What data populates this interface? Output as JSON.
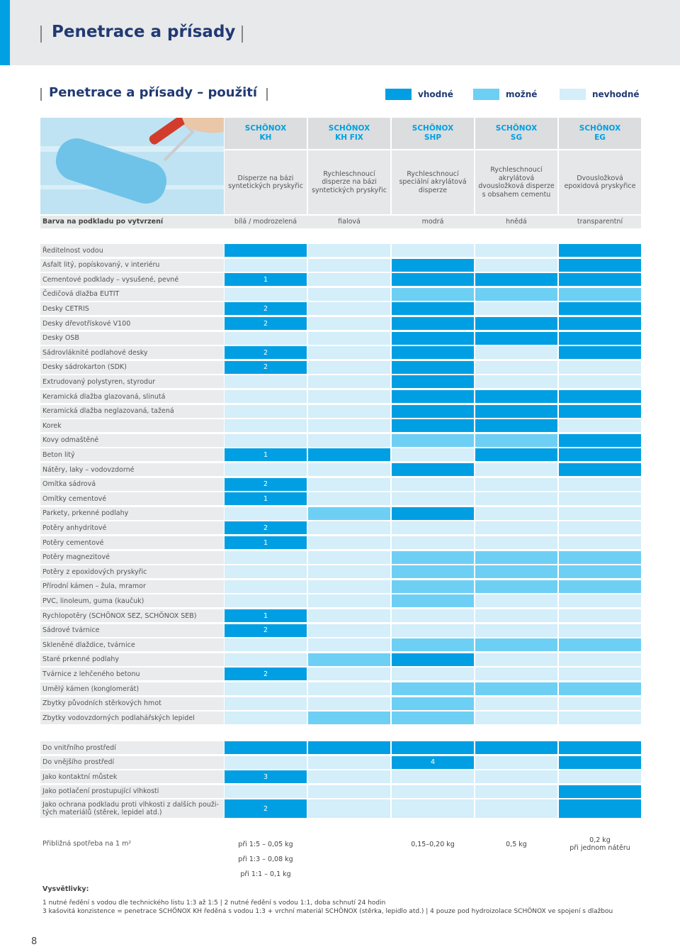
{
  "header": {
    "title": "Penetrace a přísady"
  },
  "section": {
    "title": "Penetrace a přísady – použití"
  },
  "legend": [
    {
      "label": "vhodné",
      "color": "#009fe3"
    },
    {
      "label": "možné",
      "color": "#6ecff5"
    },
    {
      "label": "nevhodné",
      "color": "#d4eefa"
    }
  ],
  "products": [
    {
      "brand": "SCHÖNOX",
      "name": "KH",
      "description": [
        "Disperze na bázi",
        "syntetických pryskyřic"
      ]
    },
    {
      "brand": "SCHÖNOX",
      "name": "KH FIX",
      "description": [
        "Rychleschnoucí",
        "disperze na bázi",
        "syntetických pryskyřic"
      ]
    },
    {
      "brand": "SCHÖNOX",
      "name": "SHP",
      "description": [
        "Rychleschnoucí",
        "speciální akrylátová",
        "disperze"
      ]
    },
    {
      "brand": "SCHÖNOX",
      "name": "SG",
      "description": [
        "Rychleschnoucí",
        "akrylátová",
        "dvousložková disperze",
        "s obsahem cementu"
      ]
    },
    {
      "brand": "SCHÖNOX",
      "name": "EG",
      "description": [
        "Dvousložková",
        "epoxidová pryskyřice"
      ]
    }
  ],
  "base_color": {
    "label": "Barva na podkladu po vytvrzení",
    "values": [
      "bílá / modrozelená",
      "fialová",
      "modrá",
      "hnědá",
      "transparentní"
    ]
  },
  "rows": [
    {
      "label": "Ředitelnost vodou",
      "levels": [
        0,
        2,
        2,
        2,
        0
      ],
      "notes": [
        null,
        null,
        null,
        null,
        null
      ]
    },
    {
      "label": "Asfalt litý, popískovaný, v interiéru",
      "levels": [
        2,
        2,
        0,
        2,
        0
      ],
      "notes": [
        null,
        null,
        null,
        null,
        null
      ]
    },
    {
      "label": "Cementové podklady – vysušené, pevné",
      "levels": [
        0,
        2,
        0,
        0,
        0
      ],
      "notes": [
        "1",
        null,
        null,
        null,
        null
      ]
    },
    {
      "label": "Čedičová dlažba EUTIT",
      "levels": [
        2,
        2,
        1,
        1,
        1
      ],
      "notes": [
        null,
        null,
        null,
        null,
        null
      ]
    },
    {
      "label": "Desky CETRIS",
      "levels": [
        0,
        2,
        0,
        2,
        0
      ],
      "notes": [
        "2",
        null,
        null,
        null,
        null
      ]
    },
    {
      "label": "Desky dřevotřískové V100",
      "levels": [
        0,
        2,
        0,
        0,
        0
      ],
      "notes": [
        "2",
        null,
        null,
        null,
        null
      ]
    },
    {
      "label": "Desky OSB",
      "levels": [
        2,
        2,
        0,
        0,
        0
      ],
      "notes": [
        null,
        null,
        null,
        null,
        null
      ]
    },
    {
      "label": "Sádrovláknité podlahové desky",
      "levels": [
        0,
        2,
        0,
        2,
        0
      ],
      "notes": [
        "2",
        null,
        null,
        null,
        null
      ]
    },
    {
      "label": "Desky sádrokarton (SDK)",
      "levels": [
        0,
        2,
        0,
        2,
        2
      ],
      "notes": [
        "2",
        null,
        null,
        null,
        null
      ]
    },
    {
      "label": "Extrudovaný polystyren, styrodur",
      "levels": [
        2,
        2,
        0,
        2,
        2
      ],
      "notes": [
        null,
        null,
        null,
        null,
        null
      ]
    },
    {
      "label": "Keramická dlažba glazovaná, slinutá",
      "levels": [
        2,
        2,
        0,
        0,
        0
      ],
      "notes": [
        null,
        null,
        null,
        null,
        null
      ]
    },
    {
      "label": "Keramická dlažba neglazovaná, tažená",
      "levels": [
        2,
        2,
        0,
        0,
        0
      ],
      "notes": [
        null,
        null,
        null,
        null,
        null
      ]
    },
    {
      "label": "Korek",
      "levels": [
        2,
        2,
        0,
        0,
        2
      ],
      "notes": [
        null,
        null,
        null,
        null,
        null
      ]
    },
    {
      "label": "Kovy odmaštěné",
      "levels": [
        2,
        2,
        1,
        1,
        0
      ],
      "notes": [
        null,
        null,
        null,
        null,
        null
      ]
    },
    {
      "label": "Beton litý",
      "levels": [
        0,
        0,
        2,
        0,
        0
      ],
      "notes": [
        "1",
        null,
        null,
        null,
        null
      ]
    },
    {
      "label": "Nátěry, laky – vodovzdorné",
      "levels": [
        2,
        2,
        0,
        2,
        0
      ],
      "notes": [
        null,
        null,
        null,
        null,
        null
      ]
    },
    {
      "label": "Omítka sádrová",
      "levels": [
        0,
        2,
        2,
        2,
        2
      ],
      "notes": [
        "2",
        null,
        null,
        null,
        null
      ]
    },
    {
      "label": "Omítky cementové",
      "levels": [
        0,
        2,
        2,
        2,
        2
      ],
      "notes": [
        "1",
        null,
        null,
        null,
        null
      ]
    },
    {
      "label": "Parkety, prkenné podlahy",
      "levels": [
        2,
        1,
        0,
        2,
        2
      ],
      "notes": [
        null,
        null,
        null,
        null,
        null
      ]
    },
    {
      "label": "Potěry anhydritové",
      "levels": [
        0,
        2,
        2,
        2,
        2
      ],
      "notes": [
        "2",
        null,
        null,
        null,
        null
      ]
    },
    {
      "label": "Potěry cementové",
      "levels": [
        0,
        2,
        2,
        2,
        2
      ],
      "notes": [
        "1",
        null,
        null,
        null,
        null
      ]
    },
    {
      "label": "Potěry magnezitové",
      "levels": [
        2,
        2,
        1,
        1,
        1
      ],
      "notes": [
        null,
        null,
        null,
        null,
        null
      ]
    },
    {
      "label": "Potěry z epoxidových pryskyřic",
      "levels": [
        2,
        2,
        1,
        1,
        1
      ],
      "notes": [
        null,
        null,
        null,
        null,
        null
      ]
    },
    {
      "label": "Přírodní kámen – žula, mramor",
      "levels": [
        2,
        2,
        1,
        1,
        1
      ],
      "notes": [
        null,
        null,
        null,
        null,
        null
      ]
    },
    {
      "label": "PVC, linoleum, guma (kaučuk)",
      "levels": [
        2,
        2,
        1,
        2,
        2
      ],
      "notes": [
        null,
        null,
        null,
        null,
        null
      ]
    },
    {
      "label": "Rychlopotěry (SCHÖNOX SEZ, SCHÖNOX SEB)",
      "levels": [
        0,
        2,
        2,
        2,
        2
      ],
      "notes": [
        "1",
        null,
        null,
        null,
        null
      ]
    },
    {
      "label": "Sádrové tvárnice",
      "levels": [
        0,
        2,
        2,
        2,
        2
      ],
      "notes": [
        "2",
        null,
        null,
        null,
        null
      ]
    },
    {
      "label": "Skleněné dlaždice, tvárnice",
      "levels": [
        2,
        2,
        1,
        1,
        1
      ],
      "notes": [
        null,
        null,
        null,
        null,
        null
      ]
    },
    {
      "label": "Staré prkenné podlahy",
      "levels": [
        2,
        1,
        0,
        2,
        2
      ],
      "notes": [
        null,
        null,
        null,
        null,
        null
      ]
    },
    {
      "label": "Tvárnice z lehčeného betonu",
      "levels": [
        0,
        2,
        2,
        2,
        2
      ],
      "notes": [
        "2",
        null,
        null,
        null,
        null
      ]
    },
    {
      "label": "Umělý kámen (konglomerát)",
      "levels": [
        2,
        2,
        1,
        1,
        1
      ],
      "notes": [
        null,
        null,
        null,
        null,
        null
      ]
    },
    {
      "label": "Zbytky původních stěrkových hmot",
      "levels": [
        2,
        2,
        1,
        2,
        2
      ],
      "notes": [
        null,
        null,
        null,
        null,
        null
      ]
    },
    {
      "label": "Zbytky vodovzdorných podlahářských lepidel",
      "levels": [
        2,
        1,
        1,
        2,
        2
      ],
      "notes": [
        null,
        null,
        null,
        null,
        null
      ]
    }
  ],
  "uses": [
    {
      "label": [
        "Do vnitřního prostředí"
      ],
      "levels": [
        0,
        0,
        0,
        0,
        0
      ],
      "notes": [
        null,
        null,
        null,
        null,
        null
      ]
    },
    {
      "label": [
        "Do vnějšího prostředí"
      ],
      "levels": [
        2,
        2,
        0,
        2,
        0
      ],
      "notes": [
        null,
        null,
        "4",
        null,
        null
      ]
    },
    {
      "label": [
        "Jako kontaktní můstek"
      ],
      "levels": [
        0,
        2,
        2,
        2,
        2
      ],
      "notes": [
        "3",
        null,
        null,
        null,
        null
      ]
    },
    {
      "label": [
        "Jako potlačení prostupující vlhkosti"
      ],
      "levels": [
        2,
        2,
        2,
        2,
        0
      ],
      "notes": [
        null,
        null,
        null,
        null,
        null
      ]
    },
    {
      "label": [
        "Jako ochrana podkladu proti vlhkosti z dalších použi-",
        "tých materiálů (stěrek, lepidel atd.)"
      ],
      "levels": [
        0,
        2,
        2,
        2,
        0
      ],
      "notes": [
        "2",
        null,
        null,
        null,
        null
      ]
    }
  ],
  "consumption": {
    "label": "Přibližná spotřeba na 1 m²",
    "rows": [
      [
        [
          "při 1:5 – 0,05 kg"
        ],
        null,
        [
          "0,15–0,20 kg"
        ],
        [
          "0,5 kg"
        ],
        [
          "0,2 kg",
          "při jednom nátěru"
        ]
      ],
      [
        [
          "při 1:3 – 0,08 kg"
        ],
        null,
        null,
        null,
        null
      ],
      [
        [
          "při 1:1 – 0,1 kg"
        ],
        null,
        null,
        null,
        null
      ]
    ]
  },
  "footnotes": {
    "title": "Vysvětlivky:",
    "lines": [
      "1 nutné ředění s vodou dle technického listu 1:3 až 1:5 | 2 nutné ředění s vodou 1:1, doba schnutí 24 hodin",
      "3 kašovitá konzistence = penetrace SCHÖNOX KH ředěná s vodou 1:3 + vrchní materiál SCHÖNOX (stěrka, lepidlo atd.) | 4 pouze pod hydroizolace SCHÖNOX ve spojení s dlažbou"
    ]
  },
  "page_number": "8"
}
